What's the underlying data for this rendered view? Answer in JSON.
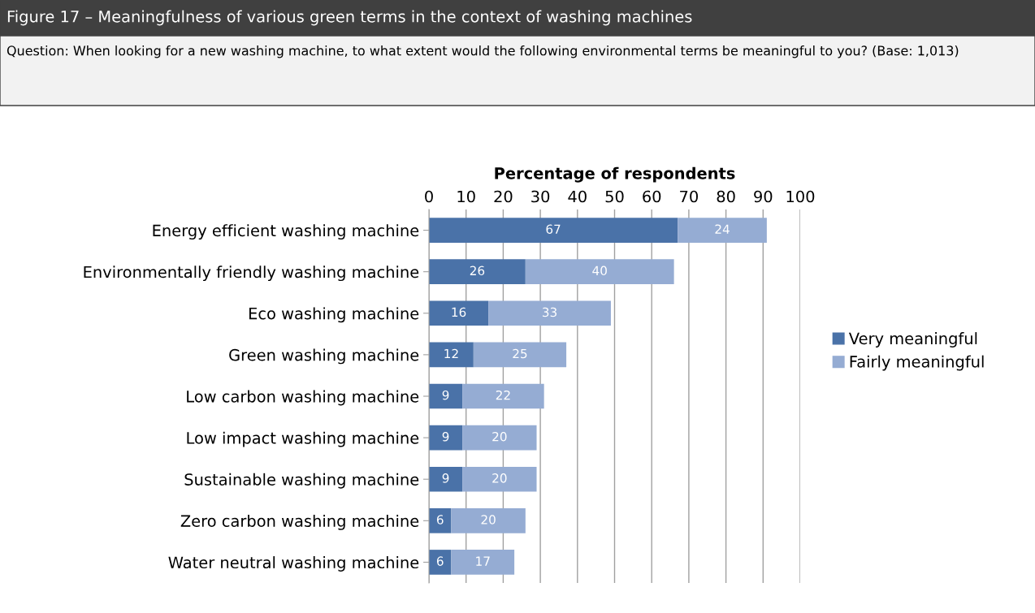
{
  "chart_data": {
    "type": "bar",
    "orientation": "horizontal",
    "stacked": true,
    "title": "Figure 17 – Meaningfulness of various green terms in the context of washing machines",
    "subtitle": "Question: When looking for a new washing machine, to what extent would the following environmental terms be meaningful to you? (Base: 1,013)",
    "xlabel": "Percentage of respondents",
    "categories": [
      "Energy efficient washing machine",
      "Environmentally friendly washing machine",
      "Eco washing machine",
      "Green washing machine",
      "Low carbon washing machine",
      "Low impact washing machine",
      "Sustainable washing machine",
      "Zero carbon washing machine",
      "Water neutral washing machine"
    ],
    "series": [
      {
        "name": "Very meaningful",
        "color": "#4a72a8",
        "values": [
          67,
          26,
          16,
          12,
          9,
          9,
          9,
          6,
          6
        ]
      },
      {
        "name": "Fairly meaningful",
        "color": "#95acd3",
        "values": [
          24,
          40,
          33,
          25,
          22,
          20,
          20,
          20,
          17
        ]
      }
    ],
    "xlim": [
      0,
      100
    ],
    "xticks": [
      0,
      10,
      20,
      30,
      40,
      50,
      60,
      70,
      80,
      90,
      100
    ],
    "grid": "x",
    "legend": "right",
    "data_labels": true
  }
}
